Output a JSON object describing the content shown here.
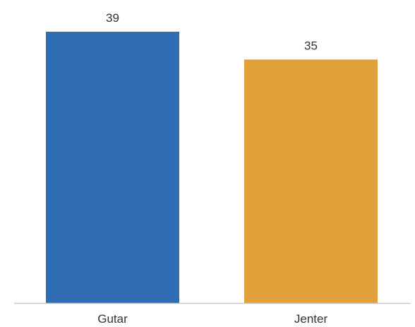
{
  "chart_data": {
    "type": "bar",
    "categories": [
      "Gutar",
      "Jenter"
    ],
    "values": [
      39,
      35
    ],
    "colors": [
      "#2f6eb5",
      "#e0a03a"
    ],
    "data_labels": [
      "39",
      "35"
    ],
    "title": "",
    "xlabel": "",
    "ylabel": "",
    "ylim": [
      0,
      39
    ],
    "grid": false,
    "legend": "none",
    "axis_color": "#c8c8c8"
  }
}
